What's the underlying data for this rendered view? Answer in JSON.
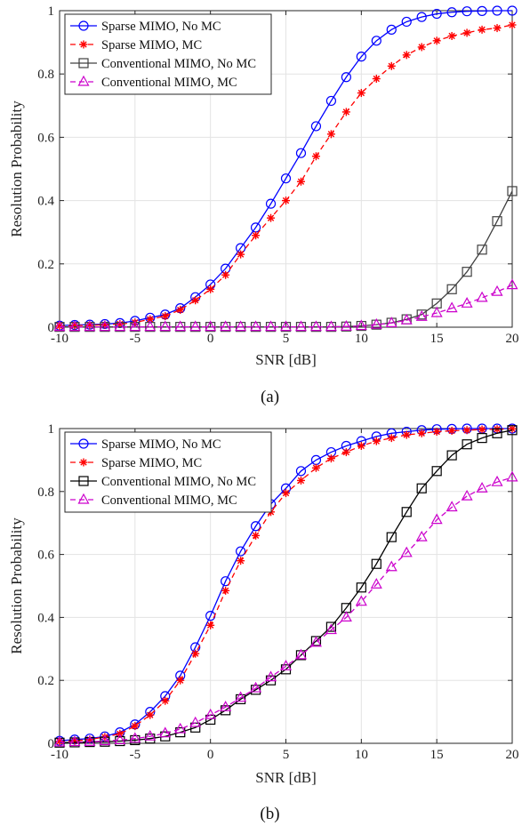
{
  "chart_data": [
    {
      "type": "line",
      "caption": "(a)",
      "xlabel": "SNR [dB]",
      "ylabel": "Resolution Probability",
      "xlim": [
        -10,
        20
      ],
      "ylim": [
        0,
        1
      ],
      "xticks": [
        -10,
        -5,
        0,
        5,
        10,
        15,
        20
      ],
      "yticks": [
        0,
        0.2,
        0.4,
        0.6,
        0.8,
        1
      ],
      "ytick_labels": [
        "0",
        "0.2",
        "0.4",
        "0.6",
        "0.8",
        "1"
      ],
      "grid": true,
      "legend_position": "top-left",
      "x": [
        -10,
        -9,
        -8,
        -7,
        -6,
        -5,
        -4,
        -3,
        -2,
        -1,
        0,
        1,
        2,
        3,
        4,
        5,
        6,
        7,
        8,
        9,
        10,
        11,
        12,
        13,
        14,
        15,
        16,
        17,
        18,
        19,
        20
      ],
      "series": [
        {
          "name": "Sparse MIMO, No MC",
          "color": "#0000ff",
          "marker": "circle",
          "line": "solid",
          "values": [
            0.005,
            0.007,
            0.008,
            0.01,
            0.013,
            0.02,
            0.03,
            0.04,
            0.06,
            0.095,
            0.135,
            0.185,
            0.25,
            0.315,
            0.39,
            0.47,
            0.55,
            0.635,
            0.715,
            0.79,
            0.855,
            0.905,
            0.94,
            0.965,
            0.98,
            0.99,
            0.995,
            0.998,
            0.999,
            1.0,
            1.0
          ]
        },
        {
          "name": "Sparse MIMO, MC",
          "color": "#ff0000",
          "marker": "star",
          "line": "dashed",
          "values": [
            0.004,
            0.005,
            0.006,
            0.008,
            0.01,
            0.015,
            0.025,
            0.035,
            0.055,
            0.085,
            0.12,
            0.165,
            0.23,
            0.29,
            0.345,
            0.4,
            0.46,
            0.54,
            0.61,
            0.68,
            0.74,
            0.785,
            0.825,
            0.86,
            0.885,
            0.905,
            0.92,
            0.93,
            0.94,
            0.945,
            0.955
          ]
        },
        {
          "name": "Conventional MIMO, No MC",
          "color": "#404040",
          "marker": "square",
          "line": "solid",
          "values": [
            0.001,
            0.001,
            0.001,
            0.001,
            0.001,
            0.001,
            0.001,
            0.001,
            0.001,
            0.001,
            0.001,
            0.001,
            0.001,
            0.001,
            0.001,
            0.001,
            0.001,
            0.001,
            0.001,
            0.002,
            0.004,
            0.008,
            0.014,
            0.025,
            0.04,
            0.075,
            0.12,
            0.175,
            0.245,
            0.335,
            0.43
          ]
        },
        {
          "name": "Conventional MIMO, MC",
          "color": "#cc00cc",
          "marker": "triangle",
          "line": "dashed",
          "values": [
            0.001,
            0.001,
            0.001,
            0.001,
            0.001,
            0.001,
            0.001,
            0.001,
            0.001,
            0.001,
            0.001,
            0.001,
            0.001,
            0.001,
            0.001,
            0.001,
            0.001,
            0.001,
            0.001,
            0.002,
            0.004,
            0.008,
            0.013,
            0.022,
            0.033,
            0.045,
            0.06,
            0.075,
            0.093,
            0.112,
            0.133
          ]
        }
      ]
    },
    {
      "type": "line",
      "caption": "(b)",
      "xlabel": "SNR [dB]",
      "ylabel": "Resolution Probability",
      "xlim": [
        -10,
        20
      ],
      "ylim": [
        0,
        1
      ],
      "xticks": [
        -10,
        -5,
        0,
        5,
        10,
        15,
        20
      ],
      "yticks": [
        0,
        0.2,
        0.4,
        0.6,
        0.8,
        1
      ],
      "ytick_labels": [
        "0",
        "0.2",
        "0.4",
        "0.6",
        "0.8",
        "1"
      ],
      "grid": true,
      "legend_position": "top-left",
      "x": [
        -10,
        -9,
        -8,
        -7,
        -6,
        -5,
        -4,
        -3,
        -2,
        -1,
        0,
        1,
        2,
        3,
        4,
        5,
        6,
        7,
        8,
        9,
        10,
        11,
        12,
        13,
        14,
        15,
        16,
        17,
        18,
        19,
        20
      ],
      "series": [
        {
          "name": "Sparse MIMO, No MC",
          "color": "#0000ff",
          "marker": "circle",
          "line": "solid",
          "values": [
            0.008,
            0.012,
            0.015,
            0.022,
            0.035,
            0.06,
            0.1,
            0.15,
            0.215,
            0.305,
            0.405,
            0.515,
            0.61,
            0.69,
            0.76,
            0.81,
            0.865,
            0.9,
            0.925,
            0.945,
            0.96,
            0.975,
            0.985,
            0.99,
            0.995,
            0.998,
            0.999,
            1.0,
            1.0,
            1.0,
            1.0
          ]
        },
        {
          "name": "Sparse MIMO, MC",
          "color": "#ff0000",
          "marker": "star",
          "line": "dashed",
          "values": [
            0.006,
            0.008,
            0.012,
            0.02,
            0.03,
            0.055,
            0.09,
            0.135,
            0.2,
            0.285,
            0.375,
            0.485,
            0.58,
            0.66,
            0.735,
            0.795,
            0.835,
            0.875,
            0.905,
            0.925,
            0.945,
            0.96,
            0.97,
            0.98,
            0.985,
            0.99,
            0.993,
            0.995,
            0.997,
            0.998,
            0.999
          ]
        },
        {
          "name": "Conventional MIMO, No MC",
          "color": "#000000",
          "marker": "square",
          "line": "solid",
          "values": [
            0.002,
            0.003,
            0.004,
            0.005,
            0.007,
            0.01,
            0.015,
            0.022,
            0.035,
            0.05,
            0.075,
            0.105,
            0.14,
            0.17,
            0.2,
            0.235,
            0.28,
            0.325,
            0.37,
            0.43,
            0.495,
            0.57,
            0.655,
            0.735,
            0.81,
            0.865,
            0.915,
            0.95,
            0.97,
            0.985,
            0.995
          ]
        },
        {
          "name": "Conventional MIMO, MC",
          "color": "#cc00cc",
          "marker": "triangle",
          "line": "dashed",
          "values": [
            0.003,
            0.004,
            0.005,
            0.007,
            0.01,
            0.015,
            0.022,
            0.032,
            0.045,
            0.065,
            0.09,
            0.115,
            0.145,
            0.175,
            0.21,
            0.245,
            0.28,
            0.32,
            0.36,
            0.4,
            0.45,
            0.505,
            0.56,
            0.605,
            0.655,
            0.71,
            0.75,
            0.785,
            0.81,
            0.83,
            0.845
          ]
        }
      ]
    }
  ]
}
